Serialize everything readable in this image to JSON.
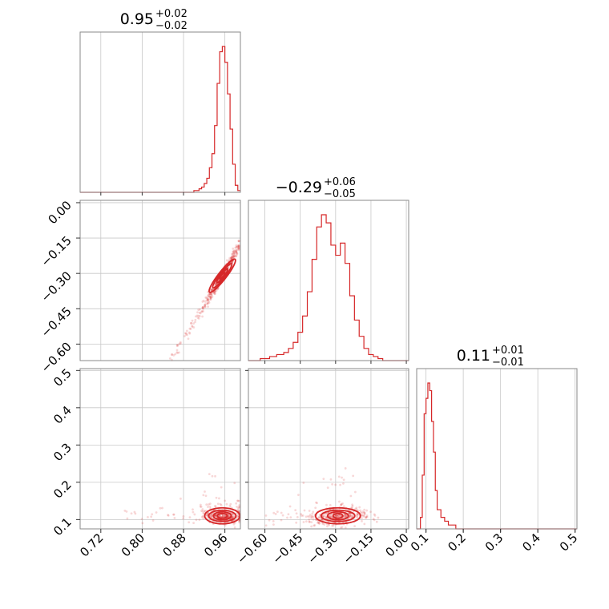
{
  "chart_data": {
    "type": "corner",
    "color": "#d62728",
    "parameters": [
      {
        "title": {
          "value": "0.95",
          "plus": "+0.02",
          "minus": "−0.02"
        },
        "range": [
          0.68,
          0.99
        ],
        "ticks": [
          "0.72",
          "0.80",
          "0.88",
          "0.96"
        ],
        "tick_values": [
          0.72,
          0.8,
          0.88,
          0.96
        ]
      },
      {
        "title": {
          "value": "−0.29",
          "plus": "+0.06",
          "minus": "−0.05"
        },
        "range": [
          -0.67,
          0.01
        ],
        "ticks": [
          "−0.60",
          "−0.45",
          "−0.30",
          "−0.15",
          "0.00"
        ],
        "tick_values": [
          -0.6,
          -0.45,
          -0.3,
          -0.15,
          0.0
        ]
      },
      {
        "title": {
          "value": "0.11",
          "plus": "+0.01",
          "minus": "−0.01"
        },
        "range": [
          0.075,
          0.505
        ],
        "ticks": [
          "0.1",
          "0.2",
          "0.3",
          "0.4",
          "0.5"
        ],
        "tick_values": [
          0.1,
          0.2,
          0.3,
          0.4,
          0.5
        ]
      }
    ],
    "histograms": [
      {
        "bin_edges": [
          0.68,
          0.685,
          0.9,
          0.91,
          0.915,
          0.92,
          0.925,
          0.93,
          0.935,
          0.94,
          0.945,
          0.95,
          0.955,
          0.96,
          0.965,
          0.97,
          0.975,
          0.98,
          0.985,
          0.99
        ],
        "counts": [
          0,
          0,
          1,
          2,
          3,
          5,
          8,
          14,
          22,
          38,
          62,
          80,
          83,
          74,
          56,
          36,
          16,
          4,
          1
        ]
      },
      {
        "bin_edges": [
          -0.67,
          -0.62,
          -0.58,
          -0.55,
          -0.52,
          -0.5,
          -0.48,
          -0.46,
          -0.44,
          -0.42,
          -0.4,
          -0.38,
          -0.36,
          -0.34,
          -0.32,
          -0.3,
          -0.28,
          -0.26,
          -0.24,
          -0.22,
          -0.2,
          -0.18,
          -0.16,
          -0.14,
          -0.12,
          -0.1,
          0.01
        ],
        "counts": [
          0,
          1,
          2,
          3,
          4,
          6,
          9,
          14,
          22,
          34,
          50,
          66,
          72,
          68,
          57,
          52,
          58,
          48,
          32,
          20,
          12,
          6,
          3,
          2,
          1,
          0
        ]
      },
      {
        "bin_edges": [
          0.075,
          0.085,
          0.09,
          0.095,
          0.1,
          0.105,
          0.11,
          0.115,
          0.12,
          0.125,
          0.13,
          0.14,
          0.15,
          0.16,
          0.18,
          0.2,
          0.505
        ],
        "counts": [
          0,
          3,
          14,
          30,
          34,
          38,
          36,
          28,
          20,
          10,
          5,
          3,
          2,
          1,
          0,
          0
        ]
      }
    ],
    "scatter_pairs": [
      {
        "x_param": 0,
        "y_param": 1,
        "relation": "curved band from (0.84, -0.55) to (0.99, -0.10)",
        "contour_center": [
          0.955,
          -0.31
        ]
      },
      {
        "x_param": 0,
        "y_param": 2,
        "relation": "cloud concentrated near (0.955, 0.11), sparse tail to x=0.72",
        "contour_center": [
          0.955,
          0.11
        ]
      },
      {
        "x_param": 1,
        "y_param": 2,
        "relation": "elongated cloud near (-0.29, 0.11), sparse tail to x=-0.60",
        "contour_center": [
          -0.29,
          0.11
        ]
      }
    ]
  }
}
